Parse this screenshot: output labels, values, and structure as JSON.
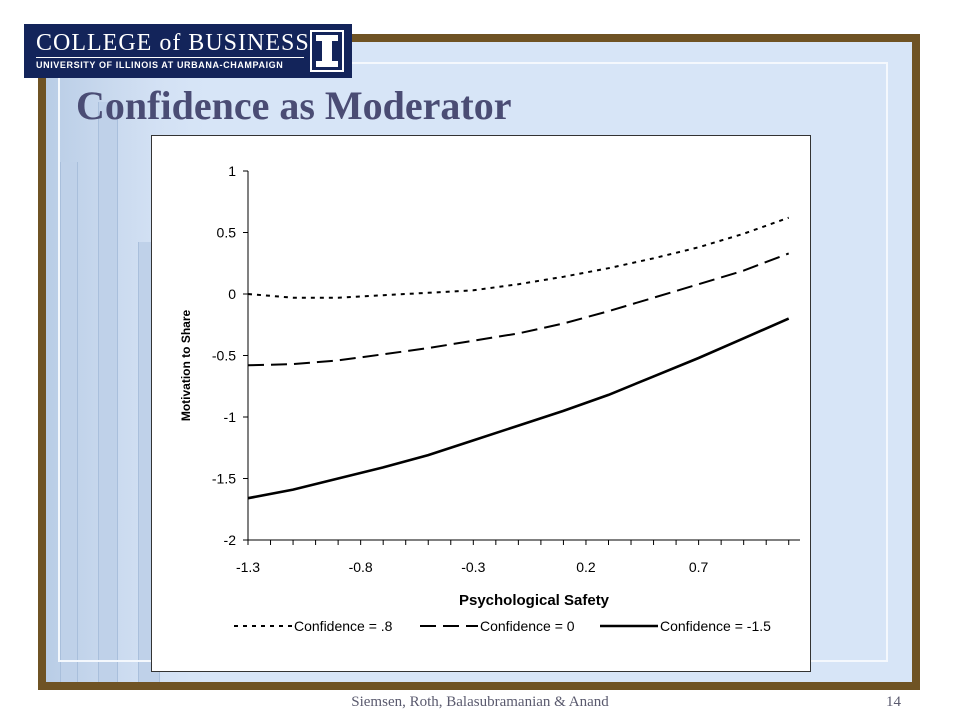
{
  "logo": {
    "line1": "COLLEGE of BUSINESS",
    "line2": "UNIVERSITY OF ILLINOIS AT URBANA-CHAMPAIGN",
    "mark": "I"
  },
  "slide": {
    "title": "Confidence as Moderator",
    "footer": "Siemsen, Roth, Balasubramanian & Anand",
    "page_number": "14"
  },
  "colors": {
    "frame": "#6f5324",
    "background": "#d7e5f7",
    "title": "#4a4c74",
    "logo": "#13245a"
  },
  "chart_data": {
    "type": "line",
    "xlabel": "Psychological Safety",
    "ylabel": "Motivation to Share",
    "xlim": [
      -1.3,
      1.15
    ],
    "ylim": [
      -2,
      1
    ],
    "x_ticks": [
      "-1.3",
      "-0.8",
      "-0.3",
      "0.2",
      "0.7"
    ],
    "y_ticks": [
      "1",
      "0.5",
      "0",
      "-0.5",
      "-1",
      "-1.5",
      "-2"
    ],
    "grid": false,
    "legend_position": "bottom",
    "x": [
      -1.3,
      -1.1,
      -0.9,
      -0.7,
      -0.5,
      -0.3,
      -0.1,
      0.1,
      0.3,
      0.5,
      0.7,
      0.9,
      1.1
    ],
    "series": [
      {
        "name": "Confidence = .8",
        "style": "short-dash",
        "values": [
          0.0,
          -0.03,
          -0.03,
          -0.01,
          0.01,
          0.03,
          0.08,
          0.14,
          0.21,
          0.29,
          0.38,
          0.49,
          0.62
        ]
      },
      {
        "name": "Confidence = 0",
        "style": "long-dash",
        "values": [
          -0.58,
          -0.57,
          -0.54,
          -0.49,
          -0.44,
          -0.38,
          -0.32,
          -0.24,
          -0.14,
          -0.03,
          0.08,
          0.19,
          0.33
        ]
      },
      {
        "name": "Confidence = -1.5",
        "style": "solid",
        "values": [
          -1.66,
          -1.59,
          -1.5,
          -1.41,
          -1.31,
          -1.19,
          -1.07,
          -0.95,
          -0.82,
          -0.67,
          -0.52,
          -0.36,
          -0.2
        ]
      }
    ]
  }
}
